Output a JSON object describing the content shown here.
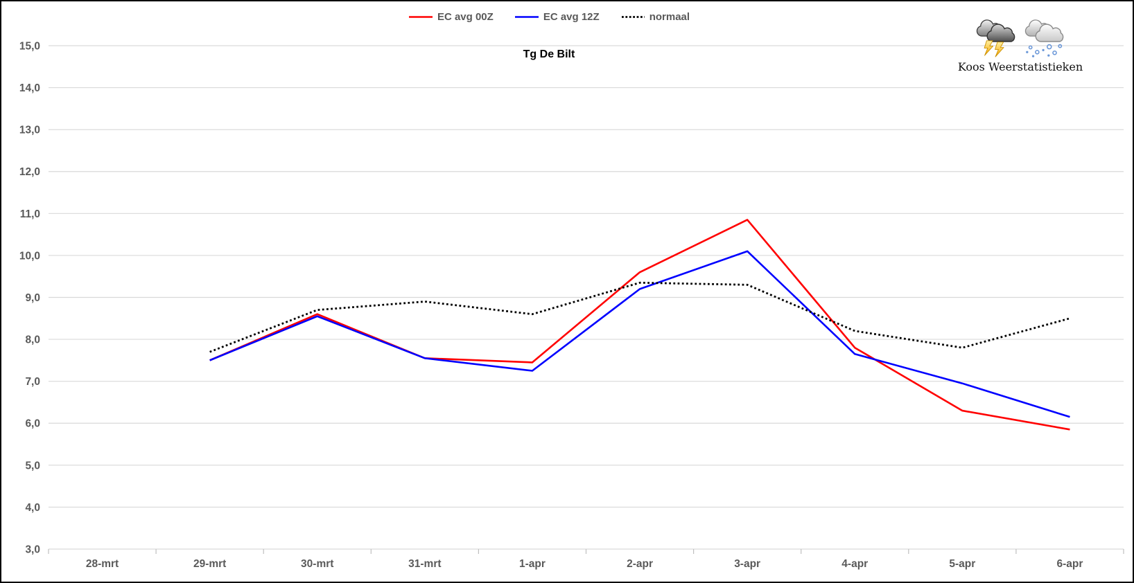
{
  "title": "Tg De Bilt",
  "branding": {
    "caption": "Koos Weerstatistieken",
    "icons": [
      "storm-cloud-lightning-icon",
      "cloud-hail-icon"
    ]
  },
  "chart_data": {
    "type": "line",
    "title": "Tg De Bilt",
    "categories": [
      "28-mrt",
      "29-mrt",
      "30-mrt",
      "31-mrt",
      "1-apr",
      "2-apr",
      "3-apr",
      "4-apr",
      "5-apr",
      "6-apr"
    ],
    "series": [
      {
        "name": "EC avg 00Z",
        "color": "#FF0000",
        "style": "solid",
        "values": [
          null,
          7.5,
          8.6,
          7.55,
          7.45,
          9.6,
          10.85,
          7.8,
          6.3,
          5.85
        ]
      },
      {
        "name": "EC avg 12Z",
        "color": "#0000FF",
        "style": "solid",
        "values": [
          null,
          7.5,
          8.55,
          7.55,
          7.25,
          9.2,
          10.1,
          7.65,
          6.95,
          6.15
        ]
      },
      {
        "name": "normaal",
        "color": "#000000",
        "style": "dotted",
        "values": [
          null,
          7.7,
          8.7,
          8.9,
          8.6,
          9.35,
          9.3,
          8.2,
          7.8,
          8.5
        ]
      }
    ],
    "xlabel": "",
    "ylabel": "",
    "ylim": [
      3,
      15
    ],
    "ytick_step": 1,
    "ytick_decimal_separator": ",",
    "grid": "horizontal",
    "legend_position": "top-center",
    "colors": {
      "gridline": "#D9D9D9",
      "tick": "#BFBFBF",
      "axis_text": "#595959",
      "title_text": "#000000"
    }
  }
}
